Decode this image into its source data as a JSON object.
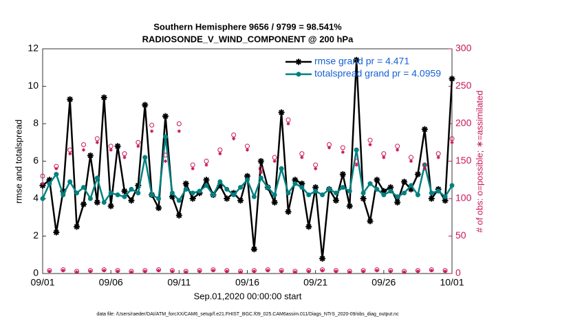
{
  "chart_data": {
    "type": "line",
    "title": "Southern Hemisphere 9656 / 9799 = 98.541%",
    "subtitle": "RADIOSONDE_V_WIND_COMPONENT @ 200 hPa",
    "xlabel": "Sep.01,2020 00:00:00 start",
    "ylabel": "rmse and totalspread",
    "y2label": "# of obs: o=possible; ∗=assimilated",
    "footnote": "data file: /Users/raeder/DAI/ATM_forcXX/CAM6_setup/f.e21.FHIST_BGC.f09_025.CAM6assim.011/Diags_NTrS_2020-09/obs_diag_output.nc",
    "legend": "upper right",
    "x": [
      0,
      0.5,
      1,
      1.5,
      2,
      2.5,
      3,
      3.5,
      4,
      4.5,
      5,
      5.5,
      6,
      6.5,
      7,
      7.5,
      8,
      8.5,
      9,
      9.5,
      10,
      10.5,
      11,
      11.5,
      12,
      12.5,
      13,
      13.5,
      14,
      14.5,
      15,
      15.5,
      16,
      16.5,
      17,
      17.5,
      18,
      18.5,
      19,
      19.5,
      20,
      20.5,
      21,
      21.5,
      22,
      22.5,
      23,
      23.5,
      24,
      24.5,
      25,
      25.5,
      26,
      26.5,
      27,
      27.5,
      28,
      28.5,
      29,
      29.5,
      30
    ],
    "xlim": [
      0,
      30
    ],
    "xticks": [
      {
        "value": 0,
        "label": "09/01"
      },
      {
        "value": 5,
        "label": "09/06"
      },
      {
        "value": 10,
        "label": "09/11"
      },
      {
        "value": 15,
        "label": "09/16"
      },
      {
        "value": 20,
        "label": "09/21"
      },
      {
        "value": 25,
        "label": "09/26"
      },
      {
        "value": 30,
        "label": "10/01"
      }
    ],
    "ylim": [
      0,
      12
    ],
    "yticks": [
      0,
      2,
      4,
      6,
      8,
      10,
      12
    ],
    "y2lim": [
      0,
      300
    ],
    "y2ticks": [
      0,
      50,
      100,
      150,
      200,
      250,
      300
    ],
    "series": [
      {
        "name": "rmse grand pr = 4.471",
        "color": "#000000",
        "marker": "asterisk",
        "values": [
          4.7,
          5.0,
          2.2,
          4.4,
          9.3,
          2.5,
          3.7,
          6.3,
          3.8,
          9.4,
          3.6,
          6.8,
          4.4,
          3.9,
          4.7,
          9.0,
          4.2,
          3.5,
          8.4,
          4.1,
          3.1,
          4.8,
          4.0,
          4.3,
          5.0,
          4.2,
          4.7,
          4.0,
          4.3,
          3.9,
          5.2,
          1.3,
          6.0,
          4.6,
          3.8,
          8.6,
          3.3,
          5.0,
          4.8,
          2.5,
          4.6,
          0.8,
          4.5,
          3.9,
          5.3,
          3.6,
          11.4,
          4.0,
          2.8,
          5.0,
          4.4,
          4.6,
          3.8,
          4.9,
          4.5,
          5.3,
          7.7,
          4.0,
          4.5,
          3.9,
          10.4
        ]
      },
      {
        "name": "totalspread grand pr = 4.0959",
        "color": "#008080",
        "marker": "circle",
        "values": [
          4.0,
          4.8,
          5.3,
          4.2,
          4.9,
          4.3,
          4.6,
          4.0,
          5.1,
          3.8,
          4.3,
          4.2,
          4.1,
          4.5,
          4.3,
          6.2,
          4.2,
          4.0,
          7.3,
          4.3,
          3.9,
          4.5,
          4.3,
          4.4,
          4.7,
          4.2,
          4.9,
          4.5,
          4.2,
          4.6,
          5.0,
          4.1,
          5.1,
          4.6,
          4.2,
          5.6,
          4.3,
          4.8,
          4.6,
          4.2,
          4.4,
          4.2,
          4.5,
          4.3,
          4.6,
          4.4,
          6.6,
          4.3,
          4.8,
          4.5,
          4.2,
          4.4,
          4.1,
          4.3,
          4.7,
          4.2,
          5.8,
          4.3,
          4.4,
          4.1,
          4.7
        ]
      },
      {
        "color": "#c8145a",
        "marker": "open-circle",
        "axis": "y2",
        "values": [
          130,
          4,
          143,
          5,
          165,
          3,
          172,
          4,
          180,
          5,
          170,
          4,
          160,
          3,
          175,
          4,
          198,
          5,
          158,
          4,
          200,
          3,
          145,
          4,
          150,
          5,
          165,
          4,
          185,
          3,
          170,
          4,
          140,
          5,
          155,
          4,
          205,
          3,
          160,
          4,
          145,
          5,
          172,
          4,
          168,
          3,
          150,
          4,
          178,
          5,
          160,
          4,
          170,
          3,
          155,
          4,
          145,
          5,
          160,
          4,
          180
        ]
      },
      {
        "color": "#c8145a",
        "marker": "asterisk",
        "axis": "y2",
        "values": [
          120,
          3,
          140,
          4,
          160,
          2,
          165,
          3,
          175,
          4,
          165,
          3,
          155,
          2,
          170,
          3,
          190,
          4,
          150,
          3,
          190,
          2,
          140,
          3,
          145,
          4,
          160,
          3,
          180,
          2,
          165,
          3,
          135,
          4,
          150,
          3,
          200,
          2,
          155,
          3,
          140,
          4,
          168,
          3,
          162,
          2,
          145,
          3,
          172,
          4,
          155,
          3,
          165,
          2,
          150,
          3,
          140,
          4,
          155,
          3,
          175
        ]
      }
    ]
  }
}
